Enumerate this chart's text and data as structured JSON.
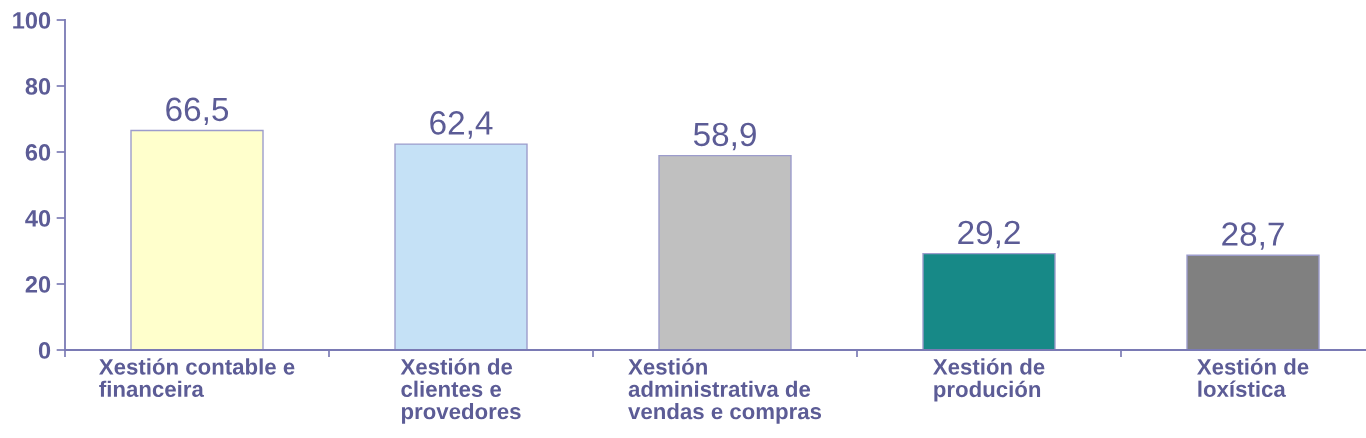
{
  "chart_data": {
    "type": "bar",
    "categories": [
      "Xestión contable e\nfinanceira",
      "Xestión de\nclientes e\nprovedores",
      "Xestión\nadministrativa de\nvendas e compras",
      "Xestión de\nprodución",
      "Xestión de\nloxística"
    ],
    "values": [
      66.5,
      62.4,
      58.9,
      29.2,
      28.7
    ],
    "value_labels": [
      "66,5",
      "62,4",
      "58,9",
      "29,2",
      "28,7"
    ],
    "colors": [
      "#ffffcc",
      "#c5e1f6",
      "#c0c0c0",
      "#178987",
      "#808080"
    ],
    "ylim": [
      0,
      100
    ],
    "yticks": [
      0,
      20,
      40,
      60,
      80,
      100
    ]
  }
}
